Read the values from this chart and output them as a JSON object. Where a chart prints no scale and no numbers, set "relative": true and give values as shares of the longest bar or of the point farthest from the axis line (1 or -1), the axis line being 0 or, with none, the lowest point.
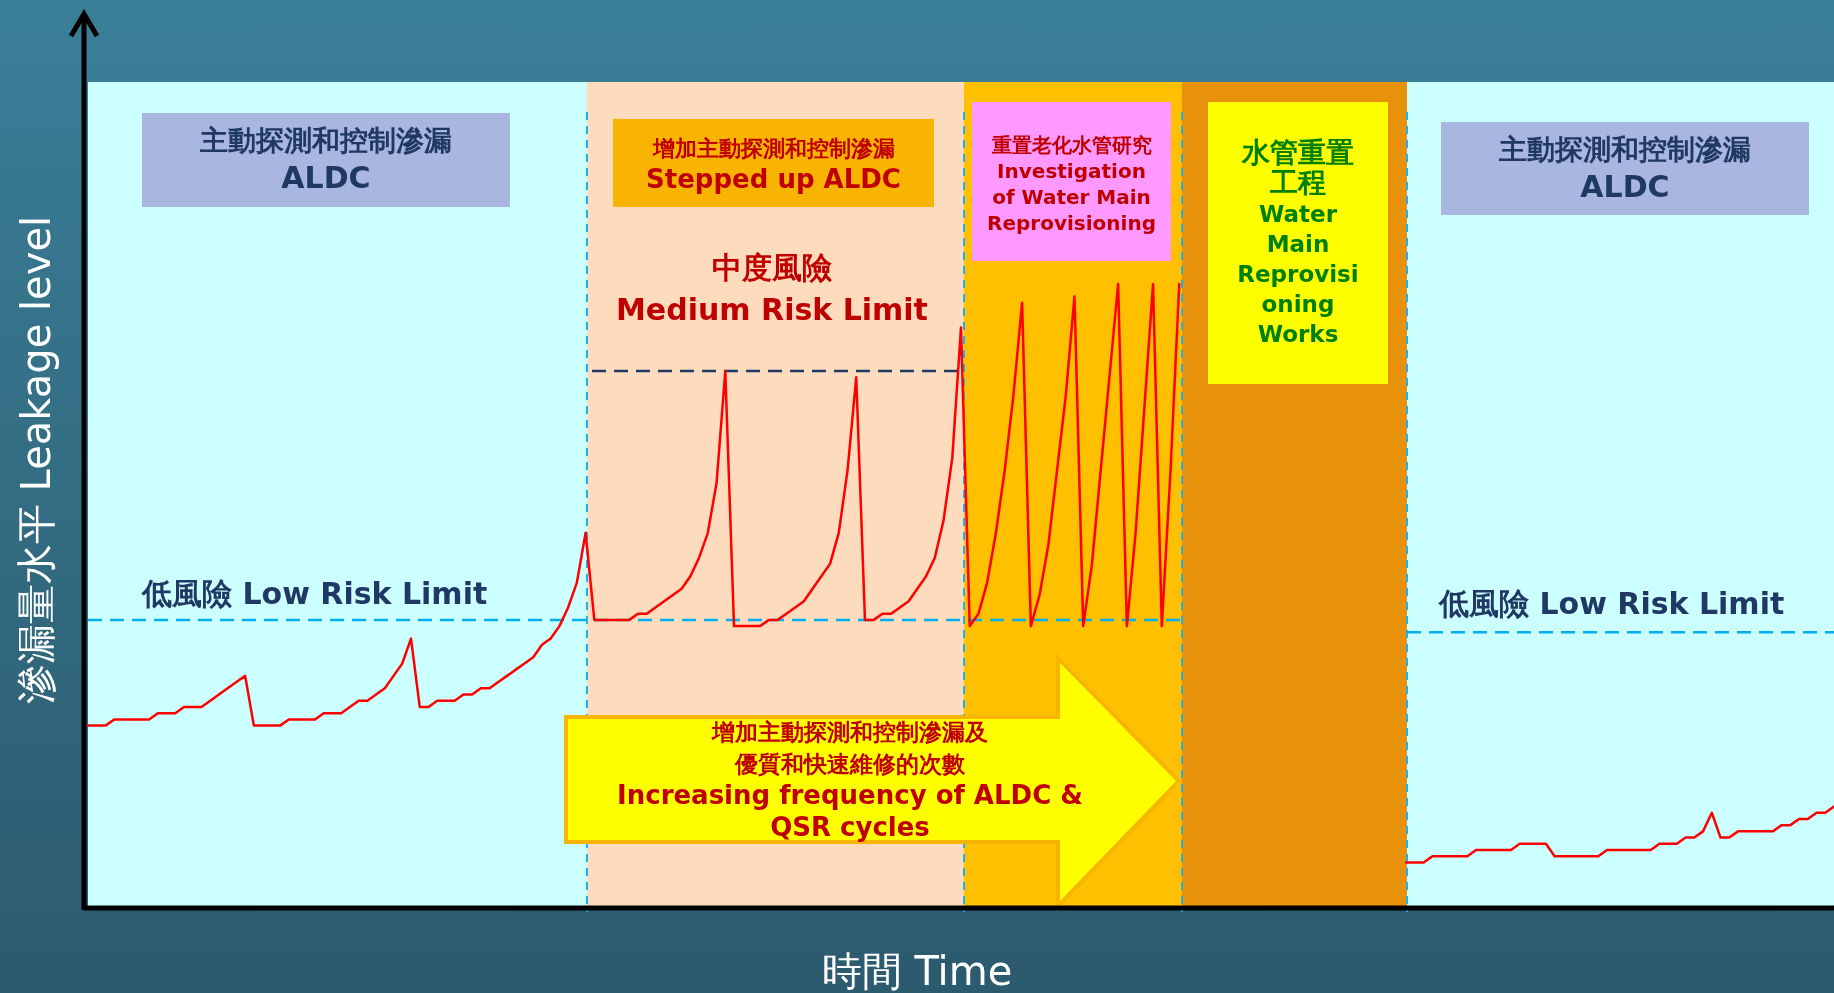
{
  "chart_data": {
    "type": "line",
    "relative": true,
    "xlabel": "時間 Time",
    "ylabel": "滲漏量水平  Leakage level",
    "categories": [
      null,
      null,
      null,
      null,
      null,
      null,
      null,
      null,
      null,
      null,
      null,
      null,
      null,
      null,
      null,
      null,
      null,
      null,
      null,
      null,
      null,
      null,
      null,
      null,
      null,
      null,
      null,
      null,
      null,
      null,
      null,
      null,
      null,
      null,
      null,
      null,
      null,
      null,
      null,
      null,
      null,
      null,
      null,
      null,
      null,
      null,
      null,
      null,
      null,
      null,
      null,
      null,
      null,
      null,
      null,
      null,
      null,
      null,
      null,
      null,
      null,
      null,
      null,
      null,
      null,
      null,
      null,
      null,
      null,
      null,
      null,
      null,
      null,
      null,
      null,
      null,
      null,
      null,
      null,
      null,
      null,
      null,
      null,
      null,
      null,
      null,
      null,
      null,
      null,
      null,
      null,
      null,
      null,
      null,
      null,
      null,
      null,
      null,
      null,
      null,
      null,
      null,
      null,
      null,
      null,
      null,
      null,
      null,
      null,
      null,
      null,
      null,
      null,
      null,
      null,
      null,
      null,
      null,
      null,
      null,
      null,
      null,
      null,
      null,
      null,
      null,
      null,
      null,
      null,
      null,
      null,
      null,
      null,
      null,
      null,
      null,
      null,
      null,
      null,
      null,
      null,
      null,
      null,
      null,
      null,
      null,
      null,
      null,
      null,
      null,
      null,
      null,
      null,
      null,
      null,
      null,
      null,
      null,
      null,
      null,
      null,
      null,
      null,
      null,
      null,
      null,
      null,
      null,
      null,
      null,
      null,
      null,
      null,
      null,
      null,
      null,
      null,
      null,
      null,
      null,
      null,
      null,
      null,
      null,
      null,
      null,
      null,
      null,
      null,
      null,
      null,
      null,
      null,
      null,
      null,
      null,
      null,
      null,
      null,
      null,
      null
    ],
    "series": [
      {
        "color": "#ff0000",
        "values": [
          0.29,
          0.29,
          0.29,
          0.3,
          0.3,
          0.3,
          0.3,
          0.3,
          0.31,
          0.31,
          0.31,
          0.32,
          0.32,
          0.32,
          0.33,
          0.34,
          0.35,
          0.36,
          0.37,
          0.29,
          0.29,
          0.29,
          0.29,
          0.3,
          0.3,
          0.3,
          0.3,
          0.31,
          0.31,
          0.31,
          0.32,
          0.33,
          0.33,
          0.34,
          0.35,
          0.37,
          0.39,
          0.43,
          0.32,
          0.32,
          0.33,
          0.33,
          0.33,
          0.34,
          0.34,
          0.35,
          0.35,
          0.36,
          0.37,
          0.38,
          0.39,
          0.4,
          0.42,
          0.43,
          0.45,
          0.48,
          0.52,
          0.6,
          0.46,
          0.46,
          0.46,
          0.46,
          0.46,
          0.47,
          0.47,
          0.48,
          0.49,
          0.5,
          0.51,
          0.53,
          0.56,
          0.6,
          0.68,
          0.86,
          0.45,
          0.45,
          0.45,
          0.45,
          0.46,
          0.46,
          0.47,
          0.48,
          0.49,
          0.51,
          0.53,
          0.55,
          0.6,
          0.7,
          0.85,
          0.46,
          0.46,
          0.47,
          0.47,
          0.48,
          0.49,
          0.51,
          0.53,
          0.56,
          0.62,
          0.72,
          0.93,
          0.45,
          0.47,
          0.52,
          0.6,
          0.7,
          0.82,
          0.97,
          0.45,
          0.5,
          0.58,
          0.7,
          0.82,
          0.98,
          0.45,
          0.55,
          0.7,
          0.85,
          1,
          0.45,
          0.6,
          0.8,
          1,
          0.45,
          0.7,
          1,
          null,
          null,
          null,
          null,
          null,
          null,
          null,
          null,
          null,
          null,
          null,
          null,
          null,
          null,
          null,
          null,
          null,
          null,
          null,
          null,
          null,
          null,
          null,
          null,
          null,
          null,
          null,
          null,
          null,
          null,
          null,
          null,
          null,
          null,
          null,
          null,
          null,
          null,
          null,
          null,
          null,
          null,
          null,
          null,
          null,
          null,
          null,
          null,
          null,
          null,
          null,
          null,
          null,
          null,
          null,
          null,
          null,
          null,
          null,
          null,
          null,
          null,
          null,
          null,
          null,
          null,
          null,
          null,
          null,
          null,
          null,
          null,
          null,
          null,
          null
        ]
      },
      {
        "color": "#ff0000",
        "values": [
          null,
          null,
          null,
          null,
          null,
          null,
          null,
          null,
          null,
          null,
          null,
          null,
          null,
          null,
          null,
          null,
          null,
          null,
          null,
          null,
          null,
          null,
          null,
          null,
          null,
          null,
          null,
          null,
          null,
          null,
          null,
          null,
          null,
          null,
          null,
          null,
          null,
          null,
          null,
          null,
          null,
          null,
          null,
          null,
          null,
          null,
          null,
          null,
          null,
          null,
          null,
          null,
          null,
          null,
          null,
          null,
          null,
          null,
          null,
          null,
          null,
          null,
          null,
          null,
          null,
          null,
          null,
          null,
          null,
          null,
          null,
          null,
          null,
          null,
          null,
          null,
          null,
          null,
          null,
          null,
          null,
          null,
          null,
          null,
          null,
          null,
          null,
          null,
          null,
          null,
          null,
          null,
          null,
          null,
          null,
          null,
          null,
          null,
          null,
          null,
          null,
          null,
          null,
          null,
          null,
          null,
          null,
          null,
          null,
          null,
          null,
          null,
          null,
          null,
          null,
          null,
          null,
          null,
          null,
          null,
          null,
          null,
          null,
          null,
          null,
          null,
          null,
          null,
          null,
          null,
          null,
          null,
          null,
          null,
          null,
          null,
          null,
          null,
          null,
          null,
          null,
          null,
          null,
          null,
          null,
          null,
          null,
          null,
          null,
          null,
          null,
          0.07,
          0.07,
          0.07,
          0.08,
          0.08,
          0.08,
          0.08,
          0.08,
          0.09,
          0.09,
          0.09,
          0.09,
          0.09,
          0.1,
          0.1,
          0.1,
          0.1,
          0.08,
          0.08,
          0.08,
          0.08,
          0.08,
          0.08,
          0.09,
          0.09,
          0.09,
          0.09,
          0.09,
          0.09,
          0.1,
          0.1,
          0.1,
          0.11,
          0.11,
          0.12,
          0.15,
          0.11,
          0.11,
          0.12,
          0.12,
          0.12,
          0.12,
          0.12,
          0.13,
          0.13,
          0.14,
          0.14,
          0.15,
          0.15,
          0.16
        ]
      }
    ],
    "ref_lines": [
      {
        "axis": "y",
        "value": 0.46,
        "label": "低風險  Low Risk Limit",
        "color": "#00b0f0",
        "line_style": "dashed"
      },
      {
        "axis": "y",
        "value": 0.86,
        "label": "中度風險\nMedium Risk Limit",
        "color": "#1f3864",
        "line_style": "dashed"
      },
      {
        "axis": "y",
        "value": 0.44,
        "label": "低風險 Low Risk Limit",
        "color": "#00b0f0",
        "line_style": "dashed"
      }
    ],
    "annotations": [
      "主動探測和控制滲漏\nALDC",
      "增加主動探測和控制滲漏\nStepped up ALDC",
      "重置老化水管研究\nInvestigation\nof Water Main\nReprovisioning",
      "水管重置工程\nWater\nMain\nReprovisi\noning\nWorks",
      "主動探測和控制滲漏\nALDC",
      "增加主動探測和控制滲漏及優質和快速維修的次數\nIncreasing frequency of ALDC &\nQSR cycles"
    ]
  }
}
